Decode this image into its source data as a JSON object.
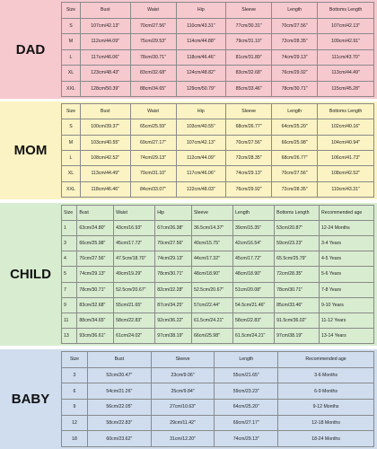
{
  "sections": [
    {
      "label": "DAD",
      "header": [
        "Size",
        "Bust",
        "Waist",
        "Hip",
        "Sleeve",
        "Length",
        "Bottoms Length"
      ],
      "rows": [
        [
          "S",
          "107cm/42.13\"",
          "70cm/27.56\"",
          "110cm/43.31\"",
          "77cm/30.31\"",
          "70cm/27.56\"",
          "107cm/42.13\""
        ],
        [
          "M",
          "112cm/44.09\"",
          "75cm/29.53\"",
          "114cm/44.88\"",
          "79cm/31.10\"",
          "72cm/28.35\"",
          "109cm/42.91\""
        ],
        [
          "L",
          "117cm/46.06\"",
          "78cm/30.71\"",
          "118cm/46.46\"",
          "81cm/31.89\"",
          "74cm/29.13\"",
          "111cm/43.70\""
        ],
        [
          "XL",
          "123cm/48.43\"",
          "83cm/32.68\"",
          "124cm/48.82\"",
          "83cm/32.68\"",
          "76cm/29.92\"",
          "113cm/44.49\""
        ],
        [
          "XXL",
          "128cm/50.39\"",
          "88cm/34.65\"",
          "129cm/50.79\"",
          "85cm/33.46\"",
          "78cm/30.71\"",
          "115cm/45.28\""
        ]
      ]
    },
    {
      "label": "MOM",
      "header": [
        "Size",
        "Bust",
        "Waist",
        "Hip",
        "Sleeve",
        "Length",
        "Bottoms Length"
      ],
      "rows": [
        [
          "S",
          "100cm/39.37\"",
          "65cm/25.59\"",
          "103cm/40.55\"",
          "68cm/26.77\"",
          "64cm/25.20\"",
          "102cm/40.16\""
        ],
        [
          "M",
          "103cm/40.55\"",
          "69cm/27.17\"",
          "107cm/42.13\"",
          "70cm/27.56\"",
          "66cm/25.98\"",
          "104cm/40.94\""
        ],
        [
          "L",
          "108cm/42.52\"",
          "74cm/29.13\"",
          "112cm/44.09\"",
          "72cm/28.35\"",
          "68cm/26.77\"",
          "106cm/41.73\""
        ],
        [
          "XL",
          "113cm/44.49\"",
          "79cm/31.10\"",
          "117cm/46.06\"",
          "74cm/29.13\"",
          "70cm/27.56\"",
          "108cm/42.52\""
        ],
        [
          "XXL",
          "118cm/46.46\"",
          "84cm/33.07\"",
          "122cm/48.03\"",
          "76cm/29.92\"",
          "72cm/28.35\"",
          "110cm/43.31\""
        ]
      ]
    },
    {
      "label": "CHILD",
      "header": [
        "Size",
        "Bust",
        "Waist",
        "Hip",
        "Sleeve",
        "Length",
        "Bottoms Length",
        "Recommended age"
      ],
      "rows": [
        [
          "1",
          "63cm/24.80\"",
          "43cm/16.93\"",
          "67cm/26.38\"",
          "36.5cm/14.37\"",
          "39cm/15.35\"",
          "53cm/20.87\"",
          "12-24 Months"
        ],
        [
          "3",
          "66cm/25.98\"",
          "45cm/17.72\"",
          "70cm/27.56\"",
          "40cm/15.75\"",
          "42cm/16.54\"",
          "59cm/23.23\"",
          "3-4 Years"
        ],
        [
          "4",
          "70cm/27.56\"",
          "47.5cm/18.70\"",
          "74cm/29.13\"",
          "44cm/17.32\"",
          "45cm/17.72\"",
          "65.5cm/25.79\"",
          "4-5 Years"
        ],
        [
          "5",
          "74cm/29.13\"",
          "49cm/19.29\"",
          "78cm/30.71\"",
          "48cm/18.90\"",
          "48cm/18.90\"",
          "72cm/28.35\"",
          "5-6 Years"
        ],
        [
          "7",
          "78cm/30.71\"",
          "52.5cm/20.67\"",
          "82cm/32.28\"",
          "52.5cm/20.67\"",
          "51cm/20.08\"",
          "78cm/30.71\"",
          "7-8 Years"
        ],
        [
          "9",
          "83cm/32.68\"",
          "55cm/21.65\"",
          "87cm/34.25\"",
          "57cm/22.44\"",
          "54.5cm/21.46\"",
          "85cm/33.46\"",
          "9-10 Years"
        ],
        [
          "11",
          "88cm/34.65\"",
          "58cm/22.83\"",
          "92cm/36.22\"",
          "61.5cm/24.21\"",
          "58cm/22.83\"",
          "91.5cm/36.02\"",
          "11-12 Years"
        ],
        [
          "13",
          "93cm/36.61\"",
          "61cm/24.02\"",
          "97cm/38.19\"",
          "66cm/25.98\"",
          "61.5cm/24.21\"",
          "97cm/38.19\"",
          "13-14 Years"
        ]
      ]
    },
    {
      "label": "BABY",
      "header": [
        "Size",
        "Bust",
        "Sleeve",
        "Length",
        "Recommended age"
      ],
      "rows": [
        [
          "3",
          "52cm/20.47\"",
          "23cm/9.06\"",
          "55cm/21.65\"",
          "3-6 Months"
        ],
        [
          "6",
          "54cm/21.26\"",
          "25cm/9.84\"",
          "59cm/23.23\"",
          "6-9 Months"
        ],
        [
          "9",
          "56cm/22.05\"",
          "27cm/10.63\"",
          "64cm/25.20\"",
          "9-12 Months"
        ],
        [
          "12",
          "58cm/22.83\"",
          "29cm/11.42\"",
          "69cm/27.17\"",
          "12-18 Months"
        ],
        [
          "18",
          "60cm/23.62\"",
          "31cm/12.20\"",
          "74cm/29.13\"",
          "18-24 Months"
        ]
      ]
    }
  ]
}
